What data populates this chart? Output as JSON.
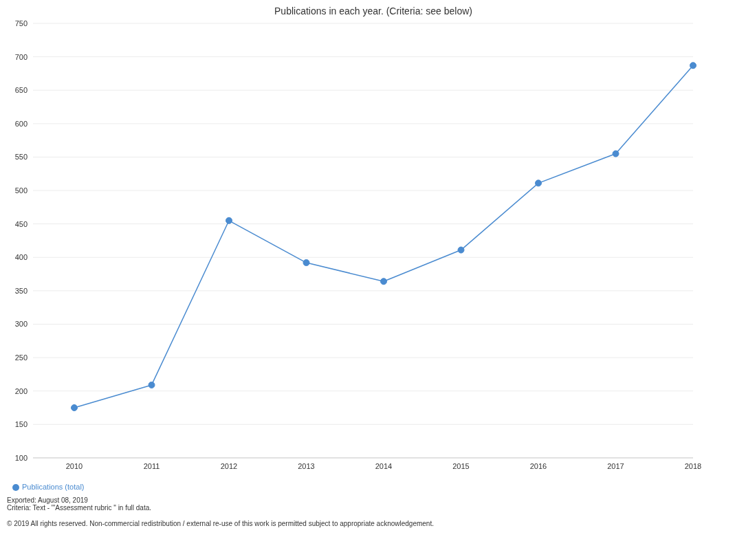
{
  "chart_data": {
    "type": "line",
    "title": "Publications in each year. (Criteria: see below)",
    "categories": [
      "2010",
      "2011",
      "2012",
      "2013",
      "2014",
      "2015",
      "2016",
      "2017",
      "2018"
    ],
    "series": [
      {
        "name": "Publications (total)",
        "color": "#4a8bd0",
        "values": [
          175,
          209,
          455,
          392,
          364,
          411,
          511,
          555,
          687
        ]
      }
    ],
    "ylim": [
      100,
      750
    ],
    "yticks": [
      100,
      150,
      200,
      250,
      300,
      350,
      400,
      450,
      500,
      550,
      600,
      650,
      700,
      750
    ],
    "grid": "y",
    "legend": "bottom left",
    "marker": "circle",
    "line_style": "solid",
    "annotations": [
      "Exported: August 08, 2019",
      "Criteria: Text - '\"Assessment rubric \" in full data.",
      "© 2019 All rights reserved. Non-commercial redistribution / external re-use of this work is permitted subject to appropriate acknowledgement."
    ]
  }
}
